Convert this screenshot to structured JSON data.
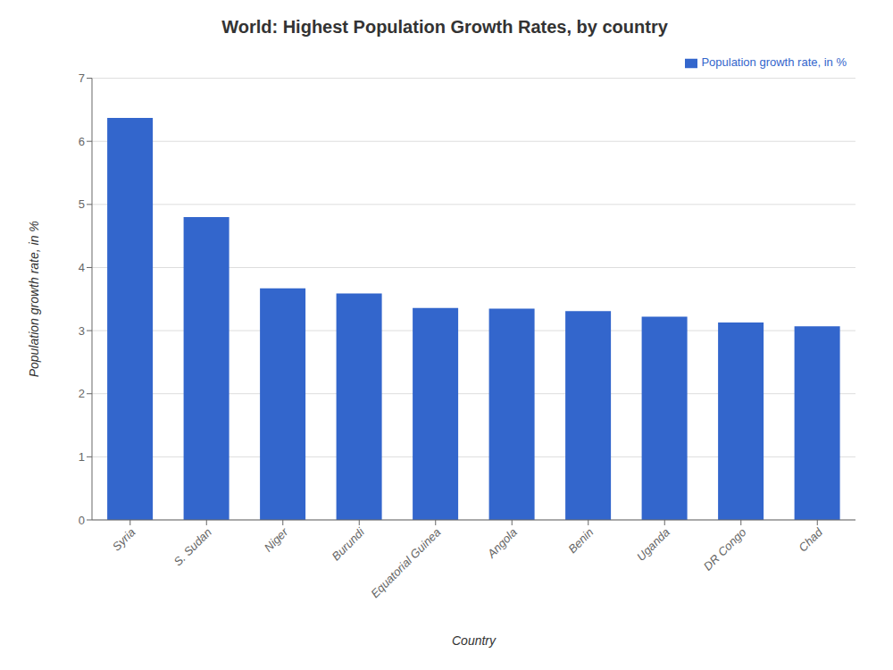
{
  "chart_data": {
    "type": "bar",
    "title": "World: Highest Population Growth Rates, by country",
    "xlabel": "Country",
    "ylabel": "Population growth rate, in %",
    "categories": [
      "Syria",
      "S. Sudan",
      "Niger",
      "Burundi",
      "Equatorial Guinea",
      "Angola",
      "Benin",
      "Uganda",
      "DR Congo",
      "Chad"
    ],
    "series": [
      {
        "name": "Population growth rate, in %",
        "color": "#3366CC",
        "values": [
          6.37,
          4.8,
          3.67,
          3.59,
          3.36,
          3.35,
          3.31,
          3.22,
          3.13,
          3.07
        ]
      }
    ],
    "ylim": [
      0,
      7
    ],
    "yticks": [
      0,
      1,
      2,
      3,
      4,
      5,
      6,
      7
    ],
    "grid": true,
    "legend": "upper right"
  }
}
